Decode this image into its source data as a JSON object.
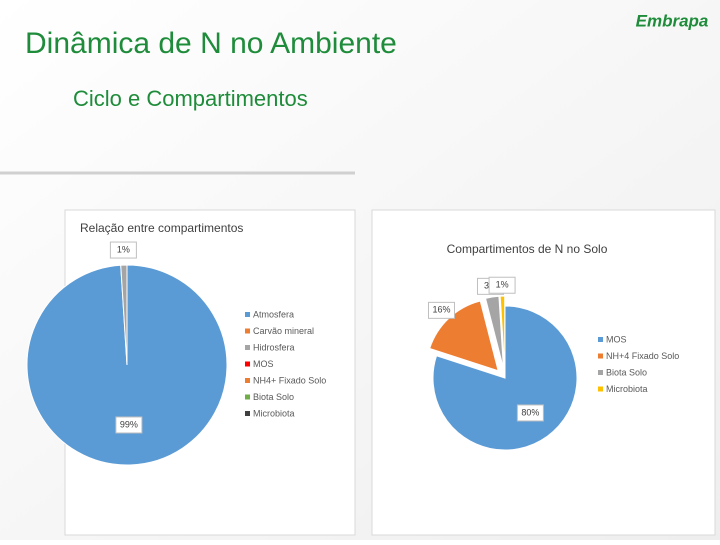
{
  "slide": {
    "title": "Dinâmica de N no Ambiente",
    "subtitle": "Ciclo e  Compartimentos",
    "logo": "Embrapa"
  },
  "chart_data": [
    {
      "type": "pie",
      "title": "Relação entre compartimentos",
      "categories": [
        "Atmosfera",
        "Carvão mineral",
        "Hidrosfera",
        "MOS",
        "NH4+ Fixado Solo",
        "Biota Solo",
        "Microbiota"
      ],
      "values": [
        99,
        0,
        1,
        0,
        0,
        0,
        0
      ],
      "value_labels": [
        "99%",
        null,
        "1%",
        null,
        null,
        null,
        null
      ],
      "colors": [
        "#5b9bd5",
        "#ed7d31",
        "#a5a5a5",
        "#ff0000",
        "#ed7d31",
        "#70ad47",
        "#404040"
      ],
      "legend": "right"
    },
    {
      "type": "pie",
      "title": "Compartimentos de N no Solo",
      "categories": [
        "MOS",
        "NH+4 Fixado Solo",
        "Biota Solo",
        "Microbiota"
      ],
      "values": [
        80,
        16,
        3,
        1
      ],
      "value_labels": [
        "80%",
        "16%",
        "3%",
        "1%"
      ],
      "colors": [
        "#5b9bd5",
        "#ed7d31",
        "#a5a5a5",
        "#ffc000"
      ],
      "exploded": true,
      "legend": "right"
    }
  ]
}
